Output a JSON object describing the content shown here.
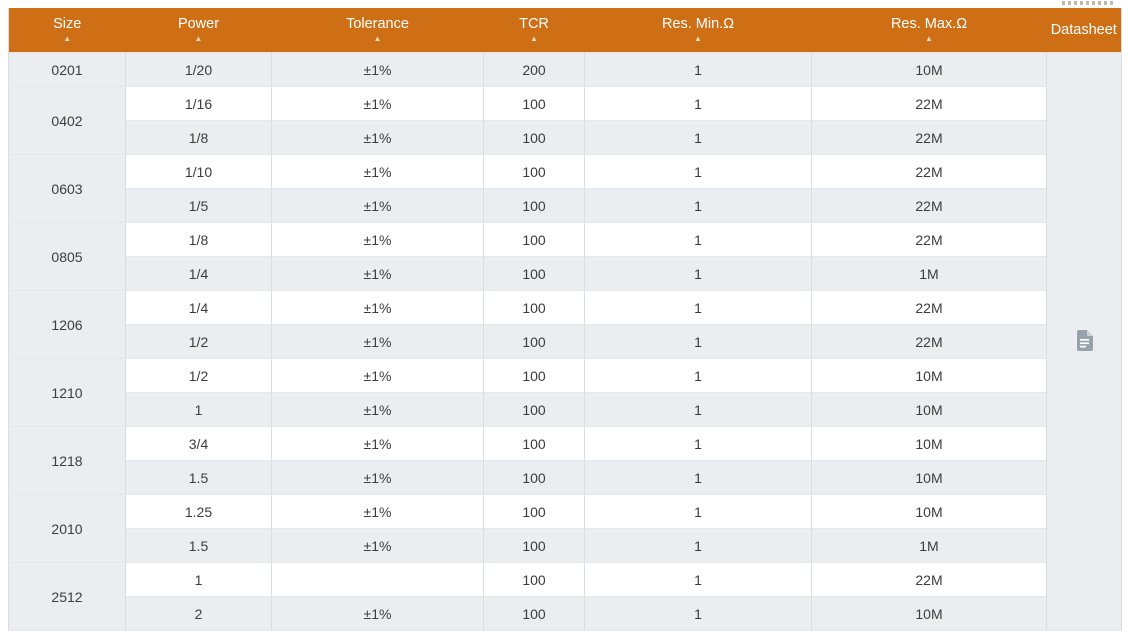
{
  "page": {
    "clipped_text_fragment": "unreadable text cut off by top edge"
  },
  "table": {
    "sort_indicator": "▲",
    "columns": [
      {
        "key": "size",
        "label": "Size",
        "sortable": true
      },
      {
        "key": "power",
        "label": "Power",
        "sortable": true
      },
      {
        "key": "tolerance",
        "label": "Tolerance",
        "sortable": true
      },
      {
        "key": "tcr",
        "label": "TCR",
        "sortable": true
      },
      {
        "key": "res-min",
        "label": "Res. Min.Ω",
        "sortable": true
      },
      {
        "key": "res-max",
        "label": "Res. Max.Ω",
        "sortable": true
      },
      {
        "key": "datasheet",
        "label": "Datasheet",
        "sortable": false
      }
    ],
    "datasheet_icon": "document-icon",
    "groups": [
      {
        "size": "0201",
        "rows": [
          {
            "power": "1/20",
            "tolerance": "±1%",
            "tcr": "200",
            "res_min": "1",
            "res_max": "10M"
          }
        ]
      },
      {
        "size": "0402",
        "rows": [
          {
            "power": "1/16",
            "tolerance": "±1%",
            "tcr": "100",
            "res_min": "1",
            "res_max": "22M"
          },
          {
            "power": "1/8",
            "tolerance": "±1%",
            "tcr": "100",
            "res_min": "1",
            "res_max": "22M"
          }
        ]
      },
      {
        "size": "0603",
        "rows": [
          {
            "power": "1/10",
            "tolerance": "±1%",
            "tcr": "100",
            "res_min": "1",
            "res_max": "22M"
          },
          {
            "power": "1/5",
            "tolerance": "±1%",
            "tcr": "100",
            "res_min": "1",
            "res_max": "22M"
          }
        ]
      },
      {
        "size": "0805",
        "rows": [
          {
            "power": "1/8",
            "tolerance": "±1%",
            "tcr": "100",
            "res_min": "1",
            "res_max": "22M"
          },
          {
            "power": "1/4",
            "tolerance": "±1%",
            "tcr": "100",
            "res_min": "1",
            "res_max": "1M"
          }
        ]
      },
      {
        "size": "1206",
        "rows": [
          {
            "power": "1/4",
            "tolerance": "±1%",
            "tcr": "100",
            "res_min": "1",
            "res_max": "22M"
          },
          {
            "power": "1/2",
            "tolerance": "±1%",
            "tcr": "100",
            "res_min": "1",
            "res_max": "22M"
          }
        ]
      },
      {
        "size": "1210",
        "rows": [
          {
            "power": "1/2",
            "tolerance": "±1%",
            "tcr": "100",
            "res_min": "1",
            "res_max": "10M"
          },
          {
            "power": "1",
            "tolerance": "±1%",
            "tcr": "100",
            "res_min": "1",
            "res_max": "10M"
          }
        ]
      },
      {
        "size": "1218",
        "rows": [
          {
            "power": "3/4",
            "tolerance": "±1%",
            "tcr": "100",
            "res_min": "1",
            "res_max": "10M"
          },
          {
            "power": "1.5",
            "tolerance": "±1%",
            "tcr": "100",
            "res_min": "1",
            "res_max": "10M"
          }
        ]
      },
      {
        "size": "2010",
        "rows": [
          {
            "power": "1.25",
            "tolerance": "±1%",
            "tcr": "100",
            "res_min": "1",
            "res_max": "10M"
          },
          {
            "power": "1.5",
            "tolerance": "±1%",
            "tcr": "100",
            "res_min": "1",
            "res_max": "1M"
          }
        ]
      },
      {
        "size": "2512",
        "rows": [
          {
            "power": "1",
            "tolerance": "",
            "tcr": "100",
            "res_min": "1",
            "res_max": "22M"
          },
          {
            "power": "2",
            "tolerance": "±1%",
            "tcr": "100",
            "res_min": "1",
            "res_max": "10M"
          }
        ]
      }
    ]
  },
  "colors": {
    "header_bg": "#ce6f16",
    "header_text": "#ffffff",
    "sort_arrow": "#f5ddc1",
    "row_bg": "#ffffff",
    "row_alt_bg": "#ebedf0",
    "datasheet_col_bg": "#eff1f4",
    "border_vertical": "#d9dce1",
    "border_horizontal": "#e3e6ea",
    "body_text": "#3c3c3c",
    "icon_gray": "#98a2ad"
  }
}
